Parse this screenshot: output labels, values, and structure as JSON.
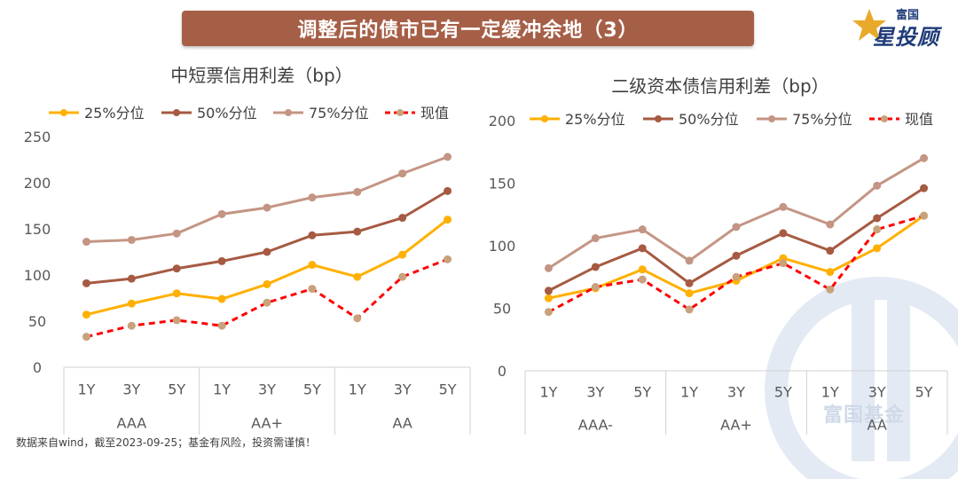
{
  "header": {
    "title": "调整后的债市已有一定缓冲余地（3）",
    "logo_small": "富国",
    "logo_big": "星投顾",
    "watermark": "富国基金",
    "accent_color": "#a65f47"
  },
  "footer": {
    "note": "数据来自wind，截至2023-09-25；基金有风险，投资需谨慎！"
  },
  "chart_data": [
    {
      "type": "line",
      "title": "中短票信用利差（bp）",
      "ylim": [
        0,
        250
      ],
      "yticks": [
        0,
        50,
        100,
        150,
        200,
        250
      ],
      "categories": [
        "1Y",
        "3Y",
        "5Y",
        "1Y",
        "3Y",
        "5Y",
        "1Y",
        "3Y",
        "5Y"
      ],
      "groups": [
        "AAA",
        "AA+",
        "AA"
      ],
      "legend_position": "top",
      "series": [
        {
          "name": "25%分位",
          "color": "#ffb000",
          "dashed": false,
          "values": [
            57,
            69,
            80,
            74,
            90,
            111,
            98,
            122,
            160
          ]
        },
        {
          "name": "50%分位",
          "color": "#a65a42",
          "dashed": false,
          "values": [
            91,
            96,
            107,
            115,
            125,
            143,
            147,
            162,
            191
          ]
        },
        {
          "name": "75%分位",
          "color": "#c49584",
          "dashed": false,
          "values": [
            136,
            138,
            145,
            166,
            173,
            184,
            190,
            210,
            228
          ]
        },
        {
          "name": "现值",
          "color": "#ff0000",
          "marker_color": "#c8a27c",
          "dashed": true,
          "values": [
            33,
            45,
            51,
            45,
            70,
            85,
            53,
            98,
            117
          ]
        }
      ]
    },
    {
      "type": "line",
      "title": "二级资本债信用利差（bp）",
      "ylim": [
        0,
        200
      ],
      "yticks": [
        0,
        50,
        100,
        150,
        200
      ],
      "categories": [
        "1Y",
        "3Y",
        "5Y",
        "1Y",
        "3Y",
        "5Y",
        "1Y",
        "3Y",
        "5Y"
      ],
      "groups": [
        "AAA-",
        "AA+",
        "AA"
      ],
      "legend_position": "top",
      "series": [
        {
          "name": "25%分位",
          "color": "#ffb000",
          "dashed": false,
          "values": [
            58,
            66,
            81,
            62,
            72,
            90,
            79,
            98,
            124
          ]
        },
        {
          "name": "50%分位",
          "color": "#a65a42",
          "dashed": false,
          "values": [
            64,
            83,
            98,
            70,
            92,
            110,
            96,
            122,
            146
          ]
        },
        {
          "name": "75%分位",
          "color": "#c49584",
          "dashed": false,
          "values": [
            82,
            106,
            113,
            88,
            115,
            131,
            117,
            148,
            170
          ]
        },
        {
          "name": "现值",
          "color": "#ff0000",
          "marker_color": "#c8a27c",
          "dashed": true,
          "values": [
            47,
            67,
            73,
            49,
            75,
            86,
            65,
            113,
            124
          ]
        }
      ]
    }
  ]
}
